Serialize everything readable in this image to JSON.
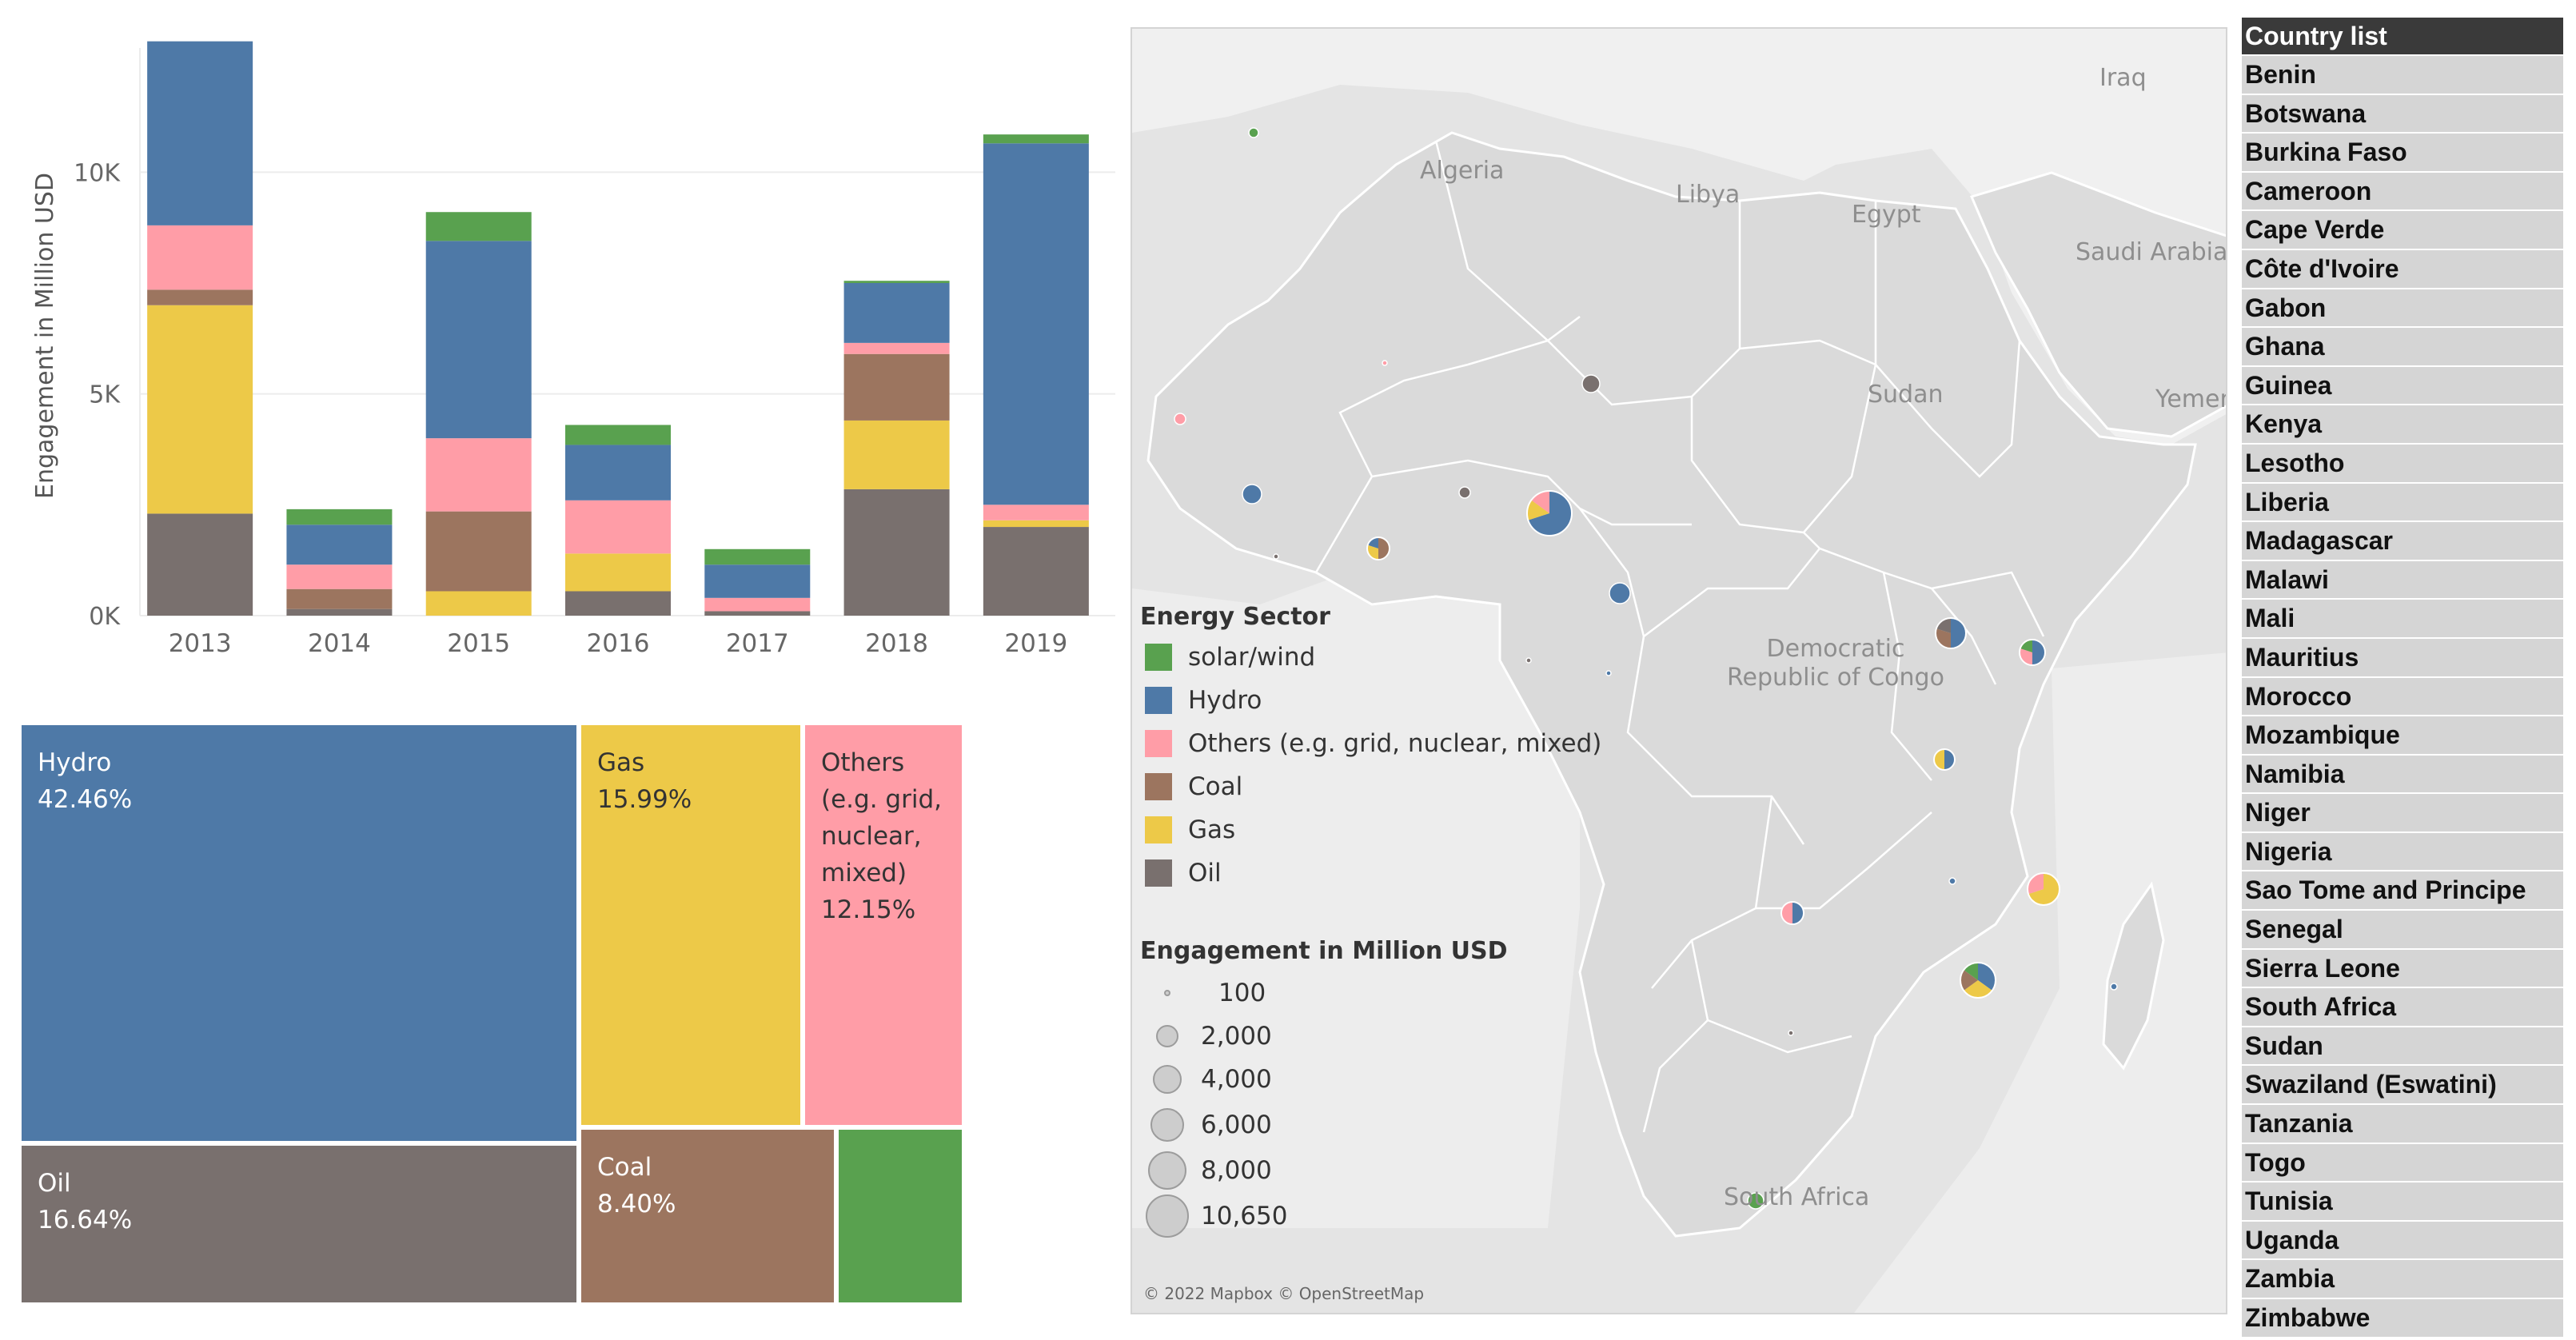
{
  "colors": {
    "solar_wind": "#59a14f",
    "hydro": "#4e79a7",
    "others": "#ff9da7",
    "coal": "#9c755f",
    "gas": "#edc948",
    "oil": "#79706e"
  },
  "chart_data": [
    {
      "type": "bar",
      "stacked": true,
      "ylabel": "Engagement in Million USD",
      "ylim": [
        0,
        12800
      ],
      "yticks": [
        {
          "value": 0,
          "label": "0K"
        },
        {
          "value": 5000,
          "label": "5K"
        },
        {
          "value": 10000,
          "label": "10K"
        }
      ],
      "categories": [
        "2013",
        "2014",
        "2015",
        "2016",
        "2017",
        "2018",
        "2019"
      ],
      "series": [
        {
          "name": "Oil",
          "key": "oil",
          "values": [
            2300,
            150,
            0,
            550,
            100,
            2850,
            2000
          ]
        },
        {
          "name": "Gas",
          "key": "gas",
          "values": [
            4700,
            0,
            550,
            850,
            0,
            1550,
            150
          ]
        },
        {
          "name": "Coal",
          "key": "coal",
          "values": [
            350,
            450,
            1800,
            0,
            0,
            1500,
            0
          ]
        },
        {
          "name": "Others (e.g. grid, nuclear, mixed)",
          "key": "others",
          "values": [
            1450,
            550,
            1650,
            1200,
            300,
            250,
            350
          ]
        },
        {
          "name": "Hydro",
          "key": "hydro",
          "values": [
            4150,
            900,
            4450,
            1250,
            750,
            1350,
            8150
          ]
        },
        {
          "name": "solar/wind",
          "key": "solar_wind",
          "values": [
            0,
            350,
            650,
            450,
            350,
            50,
            200
          ]
        }
      ]
    },
    {
      "type": "treemap",
      "items": [
        {
          "label": "Hydro",
          "pct": "42.46%",
          "key": "hydro"
        },
        {
          "label": "Gas",
          "pct": "15.99%",
          "key": "gas"
        },
        {
          "label": "Others (e.g. grid, nuclear, mixed)",
          "label_lines": [
            "Others",
            "(e.g. grid,",
            "nuclear,",
            "mixed)"
          ],
          "pct": "12.15%",
          "key": "others"
        },
        {
          "label": "Oil",
          "pct": "16.64%",
          "key": "oil"
        },
        {
          "label": "Coal",
          "pct": "8.40%",
          "key": "coal"
        },
        {
          "label": "",
          "pct": "",
          "key": "solar_wind"
        }
      ]
    }
  ],
  "map": {
    "labels": [
      "Algeria",
      "Libya",
      "Egypt",
      "Saudi Arabia",
      "Iraq",
      "Sudan",
      "Yemen",
      "Democratic Republic of Congo",
      "South Africa"
    ],
    "copyright": "© 2022 Mapbox © OpenStreetMap",
    "legend_title": "Energy Sector",
    "legend_items": [
      {
        "label": "solar/wind",
        "key": "solar_wind"
      },
      {
        "label": "Hydro",
        "key": "hydro"
      },
      {
        "label": "Others (e.g. grid, nuclear, mixed)",
        "key": "others"
      },
      {
        "label": "Coal",
        "key": "coal"
      },
      {
        "label": "Gas",
        "key": "gas"
      },
      {
        "label": "Oil",
        "key": "oil"
      }
    ],
    "size_title": "Engagement in Million USD",
    "size_items": [
      "100",
      "2,000",
      "4,000",
      "6,000",
      "8,000",
      "10,650"
    ]
  },
  "country_list": {
    "title": "Country list",
    "items": [
      "Benin",
      "Botswana",
      "Burkina Faso",
      "Cameroon",
      "Cape Verde",
      "Côte d'Ivoire",
      "Gabon",
      "Ghana",
      "Guinea",
      "Kenya",
      "Lesotho",
      "Liberia",
      "Madagascar",
      "Malawi",
      "Mali",
      "Mauritius",
      "Morocco",
      "Mozambique",
      "Namibia",
      "Niger",
      "Nigeria",
      "Sao Tome and Principe",
      "Senegal",
      "Sierra Leone",
      "South Africa",
      "Sudan",
      "Swaziland (Eswatini)",
      "Tanzania",
      "Togo",
      "Tunisia",
      "Uganda",
      "Zambia",
      "Zimbabwe"
    ]
  }
}
